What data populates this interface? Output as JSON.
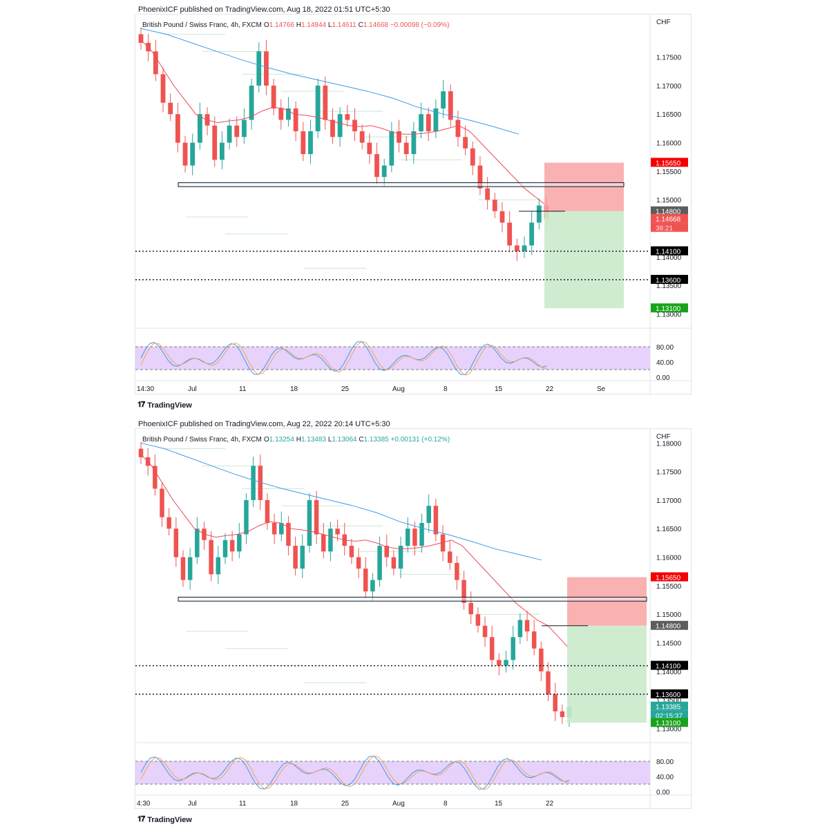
{
  "brand": "TradingView",
  "colors": {
    "up": "#26a69a",
    "down": "#ef5350",
    "ema_fast": "#e94b5b",
    "ema_slow": "#3d9be9",
    "stop_zone": "#f9a3a3",
    "target_zone": "#cbeacb",
    "stoch_band": "#e6d2fb",
    "stoch_k": "#3d9be9",
    "stoch_d": "#f5a35a",
    "price_down_badge": "#ef5350",
    "price_up_badge": "#26a69a"
  },
  "charts": [
    {
      "published": "PhoenixICF published on TradingView.com, Aug 18, 2022 01:51 UTC+5:30",
      "symbol": "British Pound / Swiss Franc, 4h, FXCM",
      "ohlc": {
        "o_label": "O",
        "o": "1.14766",
        "h_label": "H",
        "h": "1.14844",
        "l_label": "L",
        "l": "1.14611",
        "c_label": "C",
        "c": "1.14668",
        "change": "−0.00098 (−0.09%)",
        "direction": "down"
      },
      "currency": "CHF",
      "price_ticks": [
        "1.17500",
        "1.17000",
        "1.16500",
        "1.16000",
        "1.15500",
        "1.15000",
        "1.14500",
        "1.14000",
        "1.13500",
        "1.13000"
      ],
      "price_tags": [
        {
          "label": "1.15650",
          "style": "red"
        },
        {
          "label": "1.14800",
          "style": "grey"
        },
        {
          "label": "1.14668",
          "style": "last"
        },
        {
          "label": "38:21",
          "style": "countdown"
        },
        {
          "label": "1.14100",
          "style": "black"
        },
        {
          "label": "1.13600",
          "style": "black"
        },
        {
          "label": "1.13100",
          "style": "green"
        }
      ],
      "time_ticks": [
        "14:30",
        "Jul",
        "11",
        "18",
        "25",
        "Aug",
        "8",
        "15",
        "22",
        "Se"
      ],
      "stoch_ticks": [
        "80.00",
        "40.00",
        "0.00"
      ],
      "chart_data": {
        "type": "candlestick",
        "title": "British Pound / Swiss Franc, 4h, FXCM",
        "y_unit": "CHF",
        "ylim": [
          1.128,
          1.181
        ],
        "x_range": [
          "Jun 28 14:30",
          "Sep"
        ],
        "closes": [
          1.1775,
          1.176,
          1.172,
          1.167,
          1.165,
          1.16,
          1.156,
          1.16,
          1.165,
          1.163,
          1.157,
          1.16,
          1.163,
          1.161,
          1.164,
          1.17,
          1.176,
          1.17,
          1.166,
          1.164,
          1.166,
          1.162,
          1.158,
          1.162,
          1.17,
          1.164,
          1.161,
          1.165,
          1.164,
          1.162,
          1.16,
          1.158,
          1.154,
          1.156,
          1.162,
          1.16,
          1.158,
          1.162,
          1.165,
          1.162,
          1.166,
          1.169,
          1.164,
          1.161,
          1.159,
          1.156,
          1.152,
          1.15,
          1.148,
          1.146,
          1.142,
          1.141,
          1.142,
          1.146,
          1.149,
          1.1467
        ],
        "ema_fast": [
          1.178,
          1.176,
          1.173,
          1.17,
          1.1675,
          1.165,
          1.164,
          1.1635,
          1.1638,
          1.164,
          1.1645,
          1.1655,
          1.1662,
          1.166,
          1.165,
          1.1648,
          1.1645,
          1.164,
          1.1635,
          1.163,
          1.1628,
          1.163,
          1.1625,
          1.1618,
          1.1615,
          1.1615,
          1.1617,
          1.162,
          1.1625,
          1.163,
          1.162,
          1.16,
          1.158,
          1.156,
          1.154,
          1.152,
          1.1505,
          1.149
        ],
        "ema_slow": [
          1.18,
          1.179,
          1.1775,
          1.176,
          1.1745,
          1.1732,
          1.172,
          1.171,
          1.17,
          1.169,
          1.1678,
          1.1662,
          1.165,
          1.164,
          1.1628,
          1.1615
        ],
        "trade_setup": {
          "stop_loss": 1.1565,
          "entry": 1.148,
          "targets": [
            1.141,
            1.136,
            1.131
          ],
          "support_zone": [
            1.1523,
            1.153
          ]
        },
        "stochastic": {
          "overbought": 80,
          "oversold": 20,
          "range": [
            0,
            100
          ]
        }
      }
    },
    {
      "published": "PhoenixICF published on TradingView.com, Aug 22, 2022 20:14 UTC+5:30",
      "symbol": "British Pound / Swiss Franc, 4h, FXCM",
      "ohlc": {
        "o_label": "O",
        "o": "1.13254",
        "h_label": "H",
        "h": "1.13483",
        "l_label": "L",
        "l": "1.13064",
        "c_label": "C",
        "c": "1.13385",
        "change": "+0.00131 (+0.12%)",
        "direction": "up"
      },
      "currency": "CHF",
      "price_ticks": [
        "1.18000",
        "1.17500",
        "1.17000",
        "1.16500",
        "1.16000",
        "1.15500",
        "1.15000",
        "1.14500",
        "1.14000",
        "1.13500",
        "1.13000"
      ],
      "price_tags": [
        {
          "label": "1.15650",
          "style": "red"
        },
        {
          "label": "1.14800",
          "style": "grey"
        },
        {
          "label": "1.14100",
          "style": "black"
        },
        {
          "label": "1.13600",
          "style": "black"
        },
        {
          "label": "1.13385",
          "style": "last-up"
        },
        {
          "label": "02:15:37",
          "style": "countdown-up"
        },
        {
          "label": "1.13100",
          "style": "green"
        }
      ],
      "time_ticks": [
        "4:30",
        "Jul",
        "11",
        "18",
        "25",
        "Aug",
        "8",
        "15",
        "22"
      ],
      "stoch_ticks": [
        "80.00",
        "40.00",
        "0.00"
      ],
      "chart_data": {
        "type": "candlestick",
        "title": "British Pound / Swiss Franc, 4h, FXCM",
        "y_unit": "CHF",
        "ylim": [
          1.128,
          1.181
        ],
        "x_range": [
          "Jun 28 14:30",
          "Aug 23"
        ],
        "closes": [
          1.1775,
          1.176,
          1.172,
          1.167,
          1.165,
          1.16,
          1.156,
          1.16,
          1.165,
          1.163,
          1.157,
          1.16,
          1.163,
          1.161,
          1.164,
          1.17,
          1.176,
          1.17,
          1.166,
          1.164,
          1.166,
          1.162,
          1.158,
          1.162,
          1.17,
          1.164,
          1.161,
          1.165,
          1.164,
          1.162,
          1.16,
          1.158,
          1.154,
          1.156,
          1.162,
          1.16,
          1.158,
          1.162,
          1.165,
          1.162,
          1.166,
          1.169,
          1.164,
          1.161,
          1.159,
          1.156,
          1.152,
          1.15,
          1.148,
          1.146,
          1.142,
          1.141,
          1.142,
          1.146,
          1.149,
          1.147,
          1.144,
          1.14,
          1.136,
          1.133,
          1.132,
          1.1338
        ],
        "ema_fast": [
          1.178,
          1.176,
          1.173,
          1.17,
          1.1675,
          1.165,
          1.164,
          1.1635,
          1.1638,
          1.164,
          1.1645,
          1.1655,
          1.1662,
          1.166,
          1.165,
          1.1648,
          1.1645,
          1.164,
          1.1635,
          1.163,
          1.1628,
          1.163,
          1.1625,
          1.1618,
          1.1615,
          1.1615,
          1.1617,
          1.162,
          1.1625,
          1.163,
          1.162,
          1.16,
          1.158,
          1.156,
          1.154,
          1.152,
          1.1505,
          1.149,
          1.148,
          1.146,
          1.144
        ],
        "ema_slow": [
          1.18,
          1.179,
          1.1775,
          1.176,
          1.1745,
          1.1732,
          1.172,
          1.171,
          1.17,
          1.169,
          1.1678,
          1.1662,
          1.165,
          1.164,
          1.1628,
          1.1615,
          1.1605,
          1.1595
        ],
        "trade_setup": {
          "stop_loss": 1.1565,
          "entry": 1.148,
          "targets": [
            1.141,
            1.136,
            1.131
          ],
          "support_zone": [
            1.1523,
            1.153
          ]
        },
        "stochastic": {
          "overbought": 80,
          "oversold": 20,
          "range": [
            0,
            100
          ]
        }
      }
    }
  ]
}
